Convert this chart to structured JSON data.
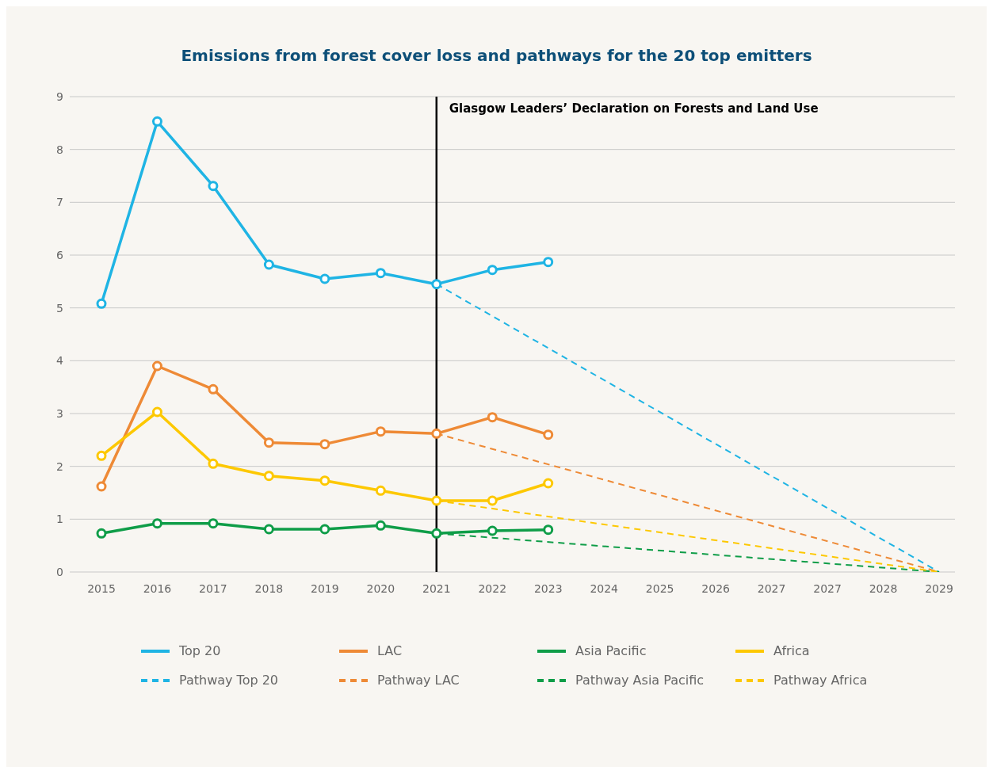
{
  "chart_data": {
    "type": "line",
    "title": "Emissions from forest cover loss and pathways for the 20 top emitters",
    "categories": [
      "2015",
      "2016",
      "2017",
      "2018",
      "2019",
      "2020",
      "2021",
      "2022",
      "2023",
      "2024",
      "2025",
      "2026",
      "2027",
      "2027",
      "2028",
      "2029"
    ],
    "series": [
      {
        "name": "Top 20",
        "color": "#1fb4e4",
        "marker": "circle",
        "line_style": "solid",
        "values": [
          5.08,
          8.53,
          7.31,
          5.82,
          5.55,
          5.66,
          5.45,
          5.72,
          5.87,
          null,
          null,
          null,
          null,
          null,
          null,
          null
        ]
      },
      {
        "name": "LAC",
        "color": "#ee8a36",
        "marker": "circle",
        "line_style": "solid",
        "values": [
          1.62,
          3.9,
          3.46,
          2.45,
          2.42,
          2.66,
          2.62,
          2.93,
          2.6,
          null,
          null,
          null,
          null,
          null,
          null,
          null
        ]
      },
      {
        "name": "Asia Pacific",
        "color": "#0f9d48",
        "marker": "circle",
        "line_style": "solid",
        "values": [
          0.73,
          0.92,
          0.92,
          0.81,
          0.81,
          0.88,
          0.73,
          0.78,
          0.8,
          null,
          null,
          null,
          null,
          null,
          null,
          null
        ]
      },
      {
        "name": "Africa",
        "color": "#fdc800",
        "marker": "circle",
        "line_style": "solid",
        "values": [
          2.2,
          3.03,
          2.05,
          1.82,
          1.73,
          1.54,
          1.35,
          1.35,
          1.68,
          null,
          null,
          null,
          null,
          null,
          null,
          null
        ]
      },
      {
        "name": "Pathway Top 20",
        "color": "#1fb4e4",
        "line_style": "dashed",
        "values": [
          null,
          null,
          null,
          null,
          null,
          null,
          5.45,
          null,
          null,
          null,
          null,
          null,
          null,
          null,
          null,
          0
        ]
      },
      {
        "name": "Pathway LAC",
        "color": "#ee8a36",
        "line_style": "dashed",
        "values": [
          null,
          null,
          null,
          null,
          null,
          null,
          2.62,
          null,
          null,
          null,
          null,
          null,
          null,
          null,
          null,
          0
        ]
      },
      {
        "name": "Pathway Asia Pacific",
        "color": "#0f9d48",
        "line_style": "dashed",
        "values": [
          null,
          null,
          null,
          null,
          null,
          null,
          0.73,
          null,
          null,
          null,
          null,
          null,
          null,
          null,
          null,
          0
        ]
      },
      {
        "name": "Pathway Africa",
        "color": "#fdc800",
        "line_style": "dashed",
        "values": [
          null,
          null,
          null,
          null,
          null,
          null,
          1.35,
          null,
          null,
          null,
          null,
          null,
          null,
          null,
          null,
          0
        ]
      }
    ],
    "ylim": [
      0,
      9
    ],
    "yticks": [
      0,
      1,
      2,
      3,
      4,
      5,
      6,
      7,
      8,
      9
    ],
    "grid": "y",
    "legend": "bottom",
    "ref_lines": [
      {
        "axis": "x",
        "value": "2021",
        "label": "Glasgow Leaders’ Declaration on Forests and Land Use",
        "color": "#000000"
      }
    ]
  }
}
